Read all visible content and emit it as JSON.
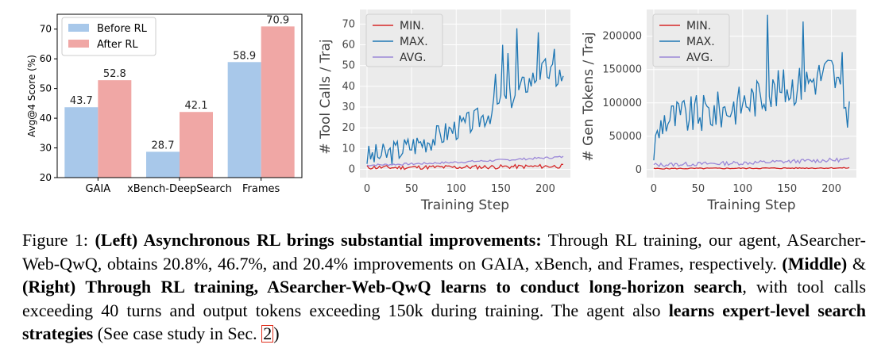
{
  "chart_data": [
    {
      "type": "bar",
      "ylabel": "Avg@4 Score (%)",
      "ylim": [
        20,
        75
      ],
      "yticks": [
        20,
        30,
        40,
        50,
        60,
        70
      ],
      "categories": [
        "GAIA",
        "xBench-DeepSearch",
        "Frames"
      ],
      "series": [
        {
          "name": "Before RL",
          "color": "#a8c8ea",
          "values": [
            43.7,
            28.7,
            58.9
          ]
        },
        {
          "name": "After RL",
          "color": "#f0a7a5",
          "values": [
            52.8,
            42.1,
            70.9
          ]
        }
      ],
      "legend": "top-left",
      "grid": false
    },
    {
      "type": "line",
      "ylabel": "# Tool Calls / Traj",
      "xlabel": "Training Step",
      "xlim": [
        -8,
        228
      ],
      "ylim": [
        -4,
        77
      ],
      "xticks": [
        0,
        50,
        100,
        150,
        200
      ],
      "yticks": [
        0,
        10,
        20,
        30,
        40,
        50,
        60,
        70
      ],
      "grid": true,
      "legend": "top-left",
      "series": [
        {
          "name": "MIN.",
          "color": "#d62728",
          "control": [
            [
              0,
              1
            ],
            [
              30,
              0.8
            ],
            [
              60,
              1
            ],
            [
              100,
              1
            ],
            [
              150,
              1.2
            ],
            [
              220,
              1.5
            ]
          ],
          "noise": 1.0,
          "seed": 11
        },
        {
          "name": "MAX.",
          "color": "#1f77b4",
          "control": [
            [
              0,
              6
            ],
            [
              20,
              7
            ],
            [
              40,
              10
            ],
            [
              60,
              13
            ],
            [
              80,
              16
            ],
            [
              100,
              20
            ],
            [
              120,
              23
            ],
            [
              140,
              28
            ],
            [
              160,
              34
            ],
            [
              180,
              42
            ],
            [
              200,
              48
            ],
            [
              220,
              42
            ]
          ],
          "noise": 6,
          "seed": 3,
          "spikes": [
            [
              144,
              46
            ],
            [
              152,
              60
            ],
            [
              158,
              56
            ],
            [
              168,
              68
            ],
            [
              185,
              73
            ],
            [
              192,
              66
            ],
            [
              203,
              62
            ],
            [
              210,
              58
            ],
            [
              216,
              48
            ]
          ]
        },
        {
          "name": "AVG.",
          "color": "#9b88d8",
          "control": [
            [
              0,
              2
            ],
            [
              50,
              2.6
            ],
            [
              100,
              3.4
            ],
            [
              150,
              4.4
            ],
            [
              200,
              5.5
            ],
            [
              220,
              6
            ]
          ],
          "noise": 0.5,
          "seed": 7
        }
      ]
    },
    {
      "type": "line",
      "ylabel": "# Gen Tokens / Traj",
      "xlabel": "Training Step",
      "xlim": [
        -8,
        228
      ],
      "ylim": [
        -12000,
        240000
      ],
      "xticks": [
        0,
        50,
        100,
        150,
        200
      ],
      "yticks": [
        0,
        50000,
        100000,
        150000,
        200000
      ],
      "grid": true,
      "legend": "top-left",
      "series": [
        {
          "name": "MIN.",
          "color": "#d62728",
          "control": [
            [
              0,
              1500
            ],
            [
              100,
              2000
            ],
            [
              220,
              2500
            ]
          ],
          "noise": 800,
          "seed": 5
        },
        {
          "name": "MAX.",
          "color": "#1f77b4",
          "control": [
            [
              0,
              30000
            ],
            [
              10,
              75000
            ],
            [
              40,
              80000
            ],
            [
              80,
              90000
            ],
            [
              110,
              105000
            ],
            [
              140,
              120000
            ],
            [
              170,
              130000
            ],
            [
              200,
              150000
            ],
            [
              220,
              80000
            ]
          ],
          "noise": 30000,
          "seed": 9,
          "spikes": [
            [
              128,
              232000
            ],
            [
              145,
              222000
            ],
            [
              168,
              222000
            ],
            [
              203,
              196000
            ],
            [
              212,
              176000
            ]
          ]
        },
        {
          "name": "AVG.",
          "color": "#9b88d8",
          "control": [
            [
              0,
              7000
            ],
            [
              100,
              10000
            ],
            [
              220,
              15000
            ]
          ],
          "noise": 3000,
          "seed": 13
        }
      ]
    }
  ],
  "caption": {
    "fig_label": "Figure 1:",
    "left_tag": "(Left) Asynchronous RL brings substantial improvements:",
    "text1": "Through RL training, our agent, ASearcher-Web-QwQ, obtains 20.8%, 46.7%, and 20.4% improvements on GAIA, xBench, and Frames, respectively.",
    "middle_tag": "(Middle)",
    "amp": "&",
    "right_tag": "(Right)",
    "bold2": "Through RL training, ASearcher-Web-QwQ learns to conduct long-horizon search",
    "text2": ", with tool calls exceeding 40 turns and output tokens exceeding 150k during training. The agent also",
    "bold3": "learns expert-level search strategies",
    "text3": "(See case study in Sec.",
    "ref": "2",
    "close": ")"
  }
}
